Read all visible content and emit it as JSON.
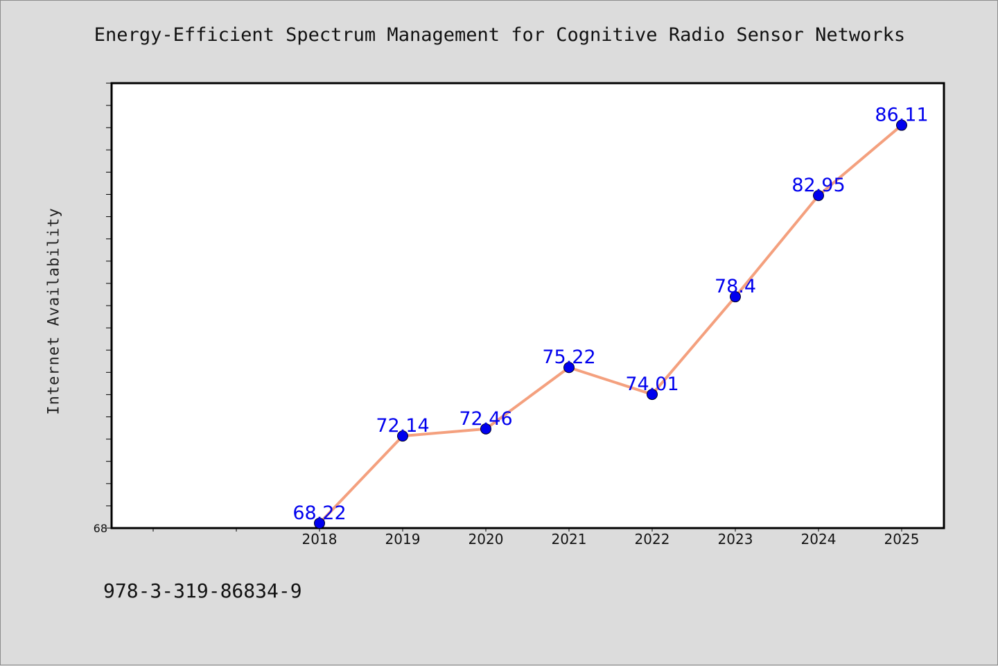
{
  "chart_data": {
    "type": "line",
    "title": "Energy-Efficient Spectrum Management for Cognitive Radio Sensor Networks",
    "xlabel": "",
    "ylabel": "Internet Availability",
    "x": [
      "2018",
      "2019",
      "2020",
      "2021",
      "2022",
      "2023",
      "2024",
      "2025"
    ],
    "values": [
      68.22,
      72.14,
      72.46,
      75.22,
      74.01,
      78.4,
      82.95,
      86.11
    ],
    "data_labels": [
      "68.22",
      "72.14",
      "72.46",
      "75.22",
      "74.01",
      "78.4",
      "82.95",
      "86.11"
    ],
    "y_tick_labels": [
      "68"
    ],
    "ylim": [
      68,
      88
    ],
    "grid": false,
    "line_color": "#f4a07e",
    "marker_color": "#0000ee",
    "label_color": "#0000ee"
  },
  "footnote": "978-3-319-86834-9"
}
